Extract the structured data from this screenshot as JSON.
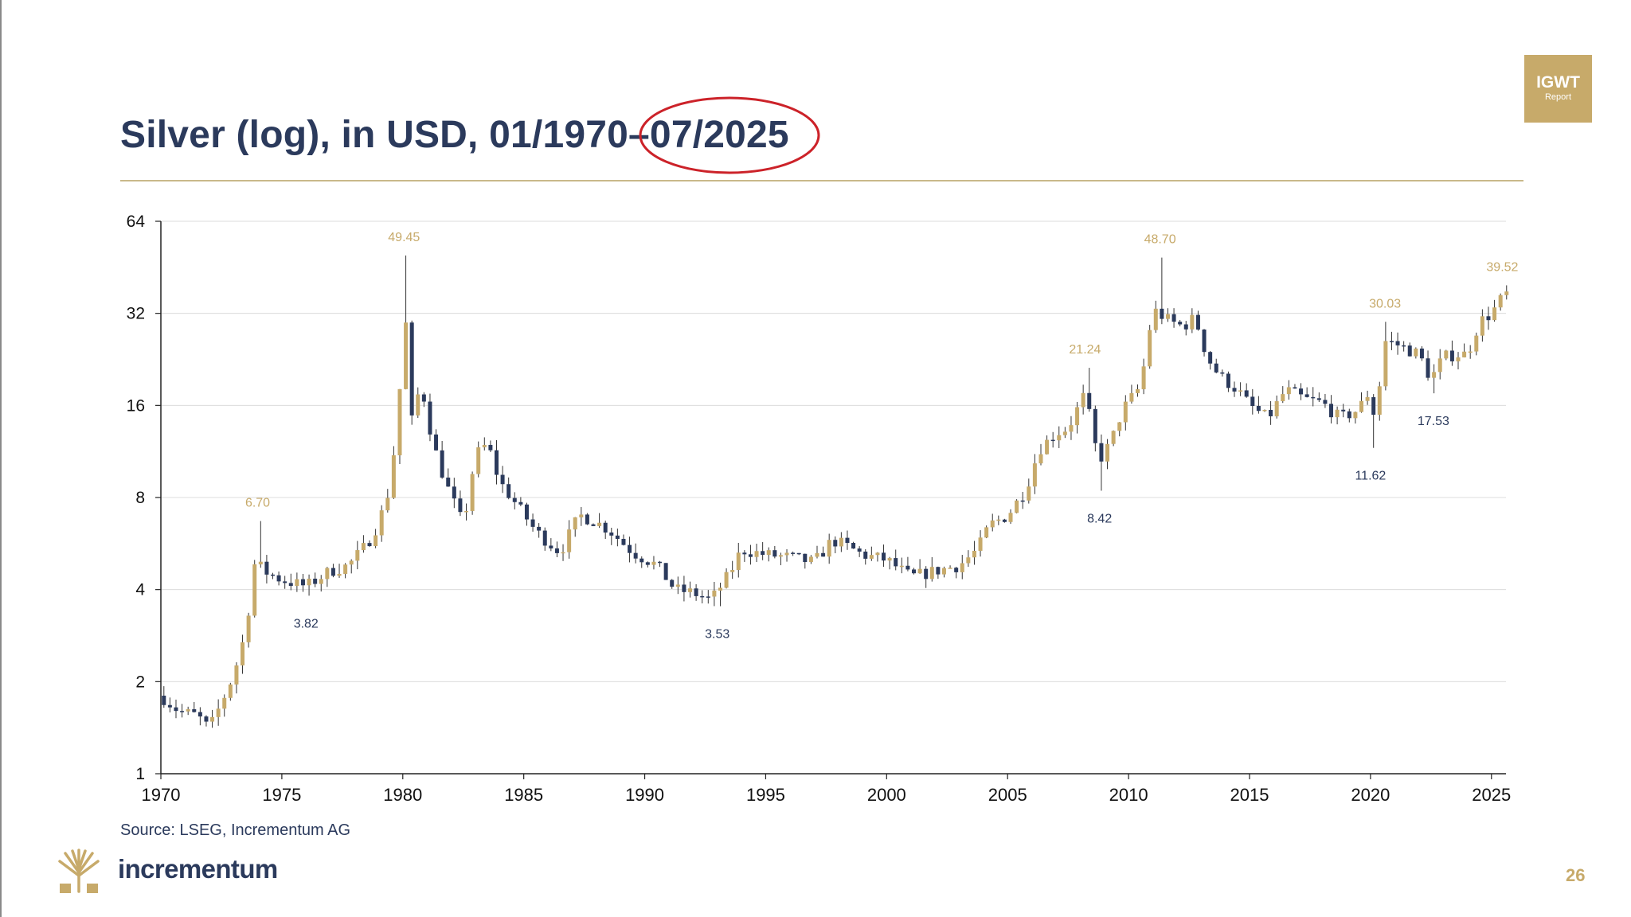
{
  "title": "Silver (log), in USD, 01/1970–07/2025",
  "logo": {
    "line1": "IGWT",
    "line2": "Report"
  },
  "source": "Source: LSEG, Incrementum AG",
  "brand": "incrementum",
  "page_number": "26",
  "colors": {
    "navy": "#2b3a5c",
    "gold": "#c7aa6a",
    "highlight": "#cc2229"
  },
  "chart_data": {
    "type": "candlestick",
    "title": "Silver (log), in USD, 01/1970–07/2025",
    "y_scale": "log2",
    "ylim": [
      1,
      64
    ],
    "y_ticks": [
      1,
      2,
      4,
      8,
      16,
      32,
      64
    ],
    "y_tick_labels": [
      "1",
      "2",
      "4",
      "8",
      "16",
      "32",
      "64"
    ],
    "xlim": [
      1970,
      2025.6
    ],
    "x_ticks": [
      1970,
      1975,
      1980,
      1985,
      1990,
      1995,
      2000,
      2005,
      2010,
      2015,
      2020,
      2025
    ],
    "x_tick_labels": [
      "1970",
      "1975",
      "1980",
      "1985",
      "1990",
      "1995",
      "2000",
      "2005",
      "2010",
      "2015",
      "2020",
      "2025"
    ],
    "grid": true,
    "series": [
      {
        "name": "up",
        "color": "#c7aa6a"
      },
      {
        "name": "down",
        "color": "#2b3a5c"
      }
    ],
    "candle_period": "quarterly",
    "anchor_closes": [
      [
        1970.0,
        1.8
      ],
      [
        1970.75,
        1.6
      ],
      [
        1971.5,
        1.55
      ],
      [
        1972.0,
        1.4
      ],
      [
        1972.5,
        1.7
      ],
      [
        1973.0,
        2.1
      ],
      [
        1973.5,
        2.9
      ],
      [
        1973.9,
        5.0
      ],
      [
        1974.25,
        4.6
      ],
      [
        1975.0,
        4.3
      ],
      [
        1976.0,
        4.1
      ],
      [
        1977.0,
        4.6
      ],
      [
        1977.75,
        4.8
      ],
      [
        1978.5,
        5.6
      ],
      [
        1979.0,
        6.6
      ],
      [
        1979.5,
        8.8
      ],
      [
        1979.85,
        17.0
      ],
      [
        1980.1,
        32.0
      ],
      [
        1980.35,
        14.0
      ],
      [
        1980.75,
        19.0
      ],
      [
        1981.25,
        12.0
      ],
      [
        1981.75,
        9.0
      ],
      [
        1982.5,
        6.5
      ],
      [
        1983.0,
        11.0
      ],
      [
        1983.5,
        12.0
      ],
      [
        1984.0,
        9.0
      ],
      [
        1984.75,
        7.5
      ],
      [
        1985.5,
        6.2
      ],
      [
        1986.5,
        5.3
      ],
      [
        1987.3,
        7.0
      ],
      [
        1987.75,
        6.8
      ],
      [
        1988.5,
        6.3
      ],
      [
        1989.5,
        5.3
      ],
      [
        1990.5,
        4.8
      ],
      [
        1991.25,
        4.0
      ],
      [
        1992.0,
        3.9
      ],
      [
        1992.75,
        3.7
      ],
      [
        1993.5,
        4.5
      ],
      [
        1994.0,
        5.4
      ],
      [
        1995.0,
        5.2
      ],
      [
        1996.0,
        5.1
      ],
      [
        1997.0,
        4.9
      ],
      [
        1997.75,
        5.8
      ],
      [
        1998.25,
        5.6
      ],
      [
        1999.0,
        5.2
      ],
      [
        2000.0,
        5.0
      ],
      [
        2001.0,
        4.4
      ],
      [
        2002.0,
        4.6
      ],
      [
        2003.0,
        4.8
      ],
      [
        2003.75,
        5.4
      ],
      [
        2004.25,
        6.5
      ],
      [
        2005.0,
        7.0
      ],
      [
        2005.75,
        8.5
      ],
      [
        2006.3,
        11.5
      ],
      [
        2007.0,
        13.0
      ],
      [
        2007.5,
        13.5
      ],
      [
        2008.2,
        17.5
      ],
      [
        2008.75,
        10.5
      ],
      [
        2009.25,
        12.0
      ],
      [
        2009.75,
        15.5
      ],
      [
        2010.5,
        18.5
      ],
      [
        2011.0,
        33.0
      ],
      [
        2011.75,
        30.0
      ],
      [
        2012.25,
        29.0
      ],
      [
        2012.75,
        31.0
      ],
      [
        2013.25,
        23.0
      ],
      [
        2013.75,
        20.0
      ],
      [
        2014.5,
        18.0
      ],
      [
        2015.0,
        16.0
      ],
      [
        2015.75,
        14.5
      ],
      [
        2016.5,
        18.0
      ],
      [
        2017.25,
        16.8
      ],
      [
        2018.0,
        16.3
      ],
      [
        2018.75,
        14.5
      ],
      [
        2019.5,
        15.5
      ],
      [
        2019.9,
        17.5
      ],
      [
        2020.2,
        14.5
      ],
      [
        2020.6,
        26.0
      ],
      [
        2021.0,
        25.5
      ],
      [
        2021.5,
        24.5
      ],
      [
        2022.0,
        23.5
      ],
      [
        2022.5,
        19.5
      ],
      [
        2023.0,
        23.0
      ],
      [
        2023.5,
        23.5
      ],
      [
        2024.0,
        23.5
      ],
      [
        2024.5,
        30.0
      ],
      [
        2025.0,
        32.0
      ],
      [
        2025.55,
        37.0
      ]
    ],
    "annotations": [
      {
        "label": "6.70",
        "x": 1974.0,
        "y": 6.7,
        "kind": "high"
      },
      {
        "label": "3.82",
        "x": 1976.0,
        "y": 3.82,
        "kind": "low"
      },
      {
        "label": "49.45",
        "x": 1980.05,
        "y": 49.45,
        "kind": "high"
      },
      {
        "label": "3.53",
        "x": 1993.0,
        "y": 3.53,
        "kind": "low"
      },
      {
        "label": "21.24",
        "x": 2008.2,
        "y": 21.24,
        "kind": "high"
      },
      {
        "label": "8.42",
        "x": 2008.8,
        "y": 8.42,
        "kind": "low"
      },
      {
        "label": "48.70",
        "x": 2011.3,
        "y": 48.7,
        "kind": "high"
      },
      {
        "label": "11.62",
        "x": 2020.0,
        "y": 11.62,
        "kind": "low"
      },
      {
        "label": "30.03",
        "x": 2020.6,
        "y": 30.03,
        "kind": "high"
      },
      {
        "label": "17.53",
        "x": 2022.6,
        "y": 17.53,
        "kind": "low"
      },
      {
        "label": "39.52",
        "x": 2025.45,
        "y": 39.52,
        "kind": "high"
      }
    ]
  }
}
